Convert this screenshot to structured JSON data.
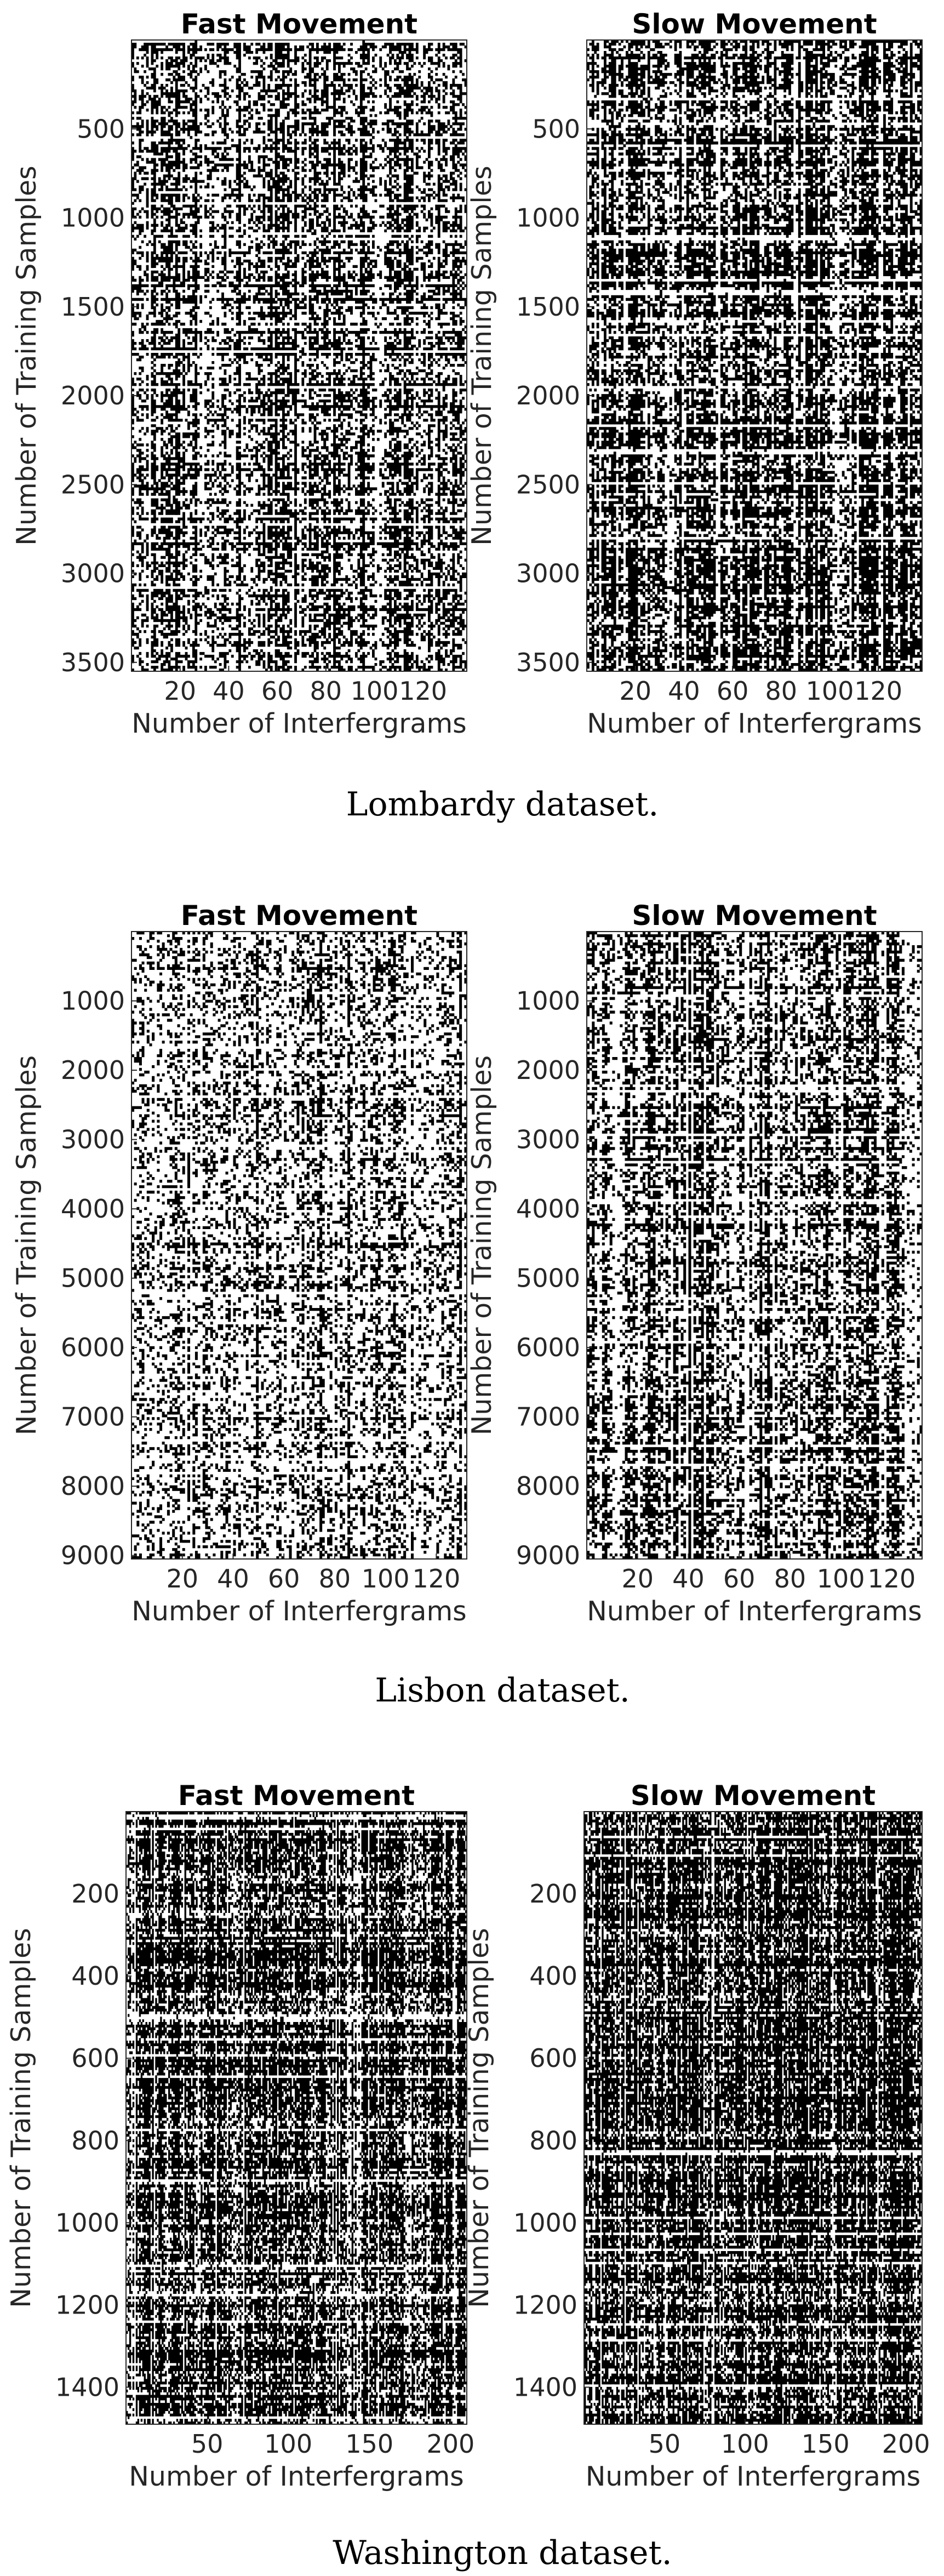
{
  "figure": {
    "captions": [
      "Lombardy dataset.",
      "Lisbon dataset.",
      "Washington dataset."
    ]
  },
  "chart_data": [
    {
      "type": "heatmap",
      "colors": [
        "#ffffff",
        "#000000"
      ],
      "title": "Fast Movement",
      "xlabel": "Number of Interfergrams",
      "ylabel": "Number of Training Samples",
      "xlim": [
        0,
        138
      ],
      "ylim": [
        3550,
        0
      ],
      "xticks": [
        20,
        40,
        60,
        80,
        100,
        120
      ],
      "yticks": [
        500,
        1000,
        1500,
        2000,
        2500,
        3000,
        3500
      ],
      "density": 0.42
    },
    {
      "type": "heatmap",
      "colors": [
        "#ffffff",
        "#000000"
      ],
      "title": "Slow Movement",
      "xlabel": "Number of Interfergrams",
      "ylabel": "Number of Training Samples",
      "xlim": [
        0,
        138
      ],
      "ylim": [
        3550,
        0
      ],
      "xticks": [
        20,
        40,
        60,
        80,
        100,
        120
      ],
      "yticks": [
        500,
        1000,
        1500,
        2000,
        2500,
        3000,
        3500
      ],
      "density": 0.6
    },
    {
      "type": "heatmap",
      "colors": [
        "#ffffff",
        "#000000"
      ],
      "title": "Fast Movement",
      "xlabel": "Number of Interfergrams",
      "ylabel": "Number of Training Samples",
      "xlim": [
        0,
        132
      ],
      "ylim": [
        9050,
        0
      ],
      "xticks": [
        20,
        40,
        60,
        80,
        100,
        120
      ],
      "yticks": [
        1000,
        2000,
        3000,
        4000,
        5000,
        6000,
        7000,
        8000,
        9000
      ],
      "density": 0.28
    },
    {
      "type": "heatmap",
      "colors": [
        "#ffffff",
        "#000000"
      ],
      "title": "Slow Movement",
      "xlabel": "Number of Interfergrams",
      "ylabel": "Number of Training Samples",
      "xlim": [
        0,
        132
      ],
      "ylim": [
        9050,
        0
      ],
      "xticks": [
        20,
        40,
        60,
        80,
        100,
        120
      ],
      "yticks": [
        1000,
        2000,
        3000,
        4000,
        5000,
        6000,
        7000,
        8000,
        9000
      ],
      "density": 0.45
    },
    {
      "type": "heatmap",
      "colors": [
        "#ffffff",
        "#000000"
      ],
      "title": "Fast Movement",
      "xlabel": "Number of Interfergrams",
      "ylabel": "Number of Training Samples",
      "xlim": [
        0,
        210
      ],
      "ylim": [
        1490,
        0
      ],
      "xticks": [
        50,
        100,
        150,
        200
      ],
      "yticks": [
        200,
        400,
        600,
        800,
        1000,
        1200,
        1400
      ],
      "density": 0.58
    },
    {
      "type": "heatmap",
      "colors": [
        "#ffffff",
        "#000000"
      ],
      "title": "Slow Movement",
      "xlabel": "Number of Interfergrams",
      "ylabel": "Number of Training Samples",
      "xlim": [
        0,
        210
      ],
      "ylim": [
        1490,
        0
      ],
      "xticks": [
        50,
        100,
        150,
        200
      ],
      "yticks": [
        200,
        400,
        600,
        800,
        1000,
        1200,
        1400
      ],
      "density": 0.72
    }
  ]
}
